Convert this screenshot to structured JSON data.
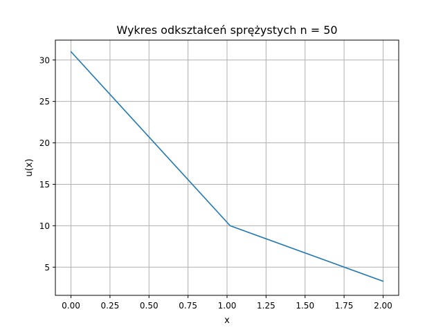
{
  "chart_data": {
    "type": "line",
    "title": "Wykres odkształceń sprężystych n = 50",
    "xlabel": "x",
    "ylabel": "u(x)",
    "xlim": [
      -0.1,
      2.1
    ],
    "ylim": [
      1.6,
      32.4
    ],
    "xticks": [
      "0.00",
      "0.25",
      "0.50",
      "0.75",
      "1.00",
      "1.25",
      "1.50",
      "1.75",
      "2.00"
    ],
    "yticks": [
      "5",
      "10",
      "15",
      "20",
      "25",
      "30"
    ],
    "grid": true,
    "series": [
      {
        "color": "#1f77b4",
        "x": [
          0.0,
          1.02,
          2.0
        ],
        "y": [
          31.0,
          10.0,
          3.3
        ]
      }
    ]
  }
}
